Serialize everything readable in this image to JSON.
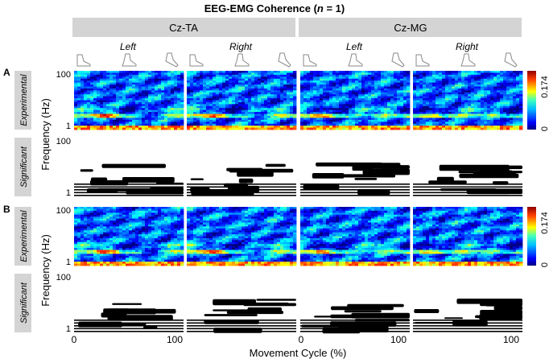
{
  "chart_data": {
    "type": "heatmap",
    "title_parts": {
      "prefix": "EEG-EMG Coherence (",
      "italic": "n",
      "suffix": " = 1)"
    },
    "column_groups": [
      "Cz-TA",
      "Cz-MG"
    ],
    "column_sides": [
      "Left",
      "Right",
      "Left",
      "Right"
    ],
    "panel_labels": [
      "A",
      "B"
    ],
    "row_types": [
      "Experimental",
      "Significant"
    ],
    "ylabel": "Frequency (Hz)",
    "xlabel": "Movement Cycle (%)",
    "y_ticks": [
      "100",
      "1"
    ],
    "x_ticks": [
      "0",
      "100"
    ],
    "xlim": [
      0,
      100
    ],
    "ylim": [
      1,
      100
    ],
    "y_scale": "log",
    "colorbar": {
      "min": 0,
      "max": 0.174,
      "max_label": "0.174",
      "min_label": "0"
    },
    "colors": {
      "grid_header_bg": "#d4d4d4",
      "row_label_bg": "#d4d4d4",
      "significant_fill": "#000000",
      "colormap": [
        "#00007f",
        "#0000ff",
        "#007fff",
        "#00ffff",
        "#7fff7f",
        "#ffff00",
        "#ff7f00",
        "#ff0000",
        "#7f0000"
      ]
    },
    "icons": [
      "foot-heel-strike-icon",
      "foot-midstance-icon",
      "foot-toe-off-icon"
    ]
  }
}
